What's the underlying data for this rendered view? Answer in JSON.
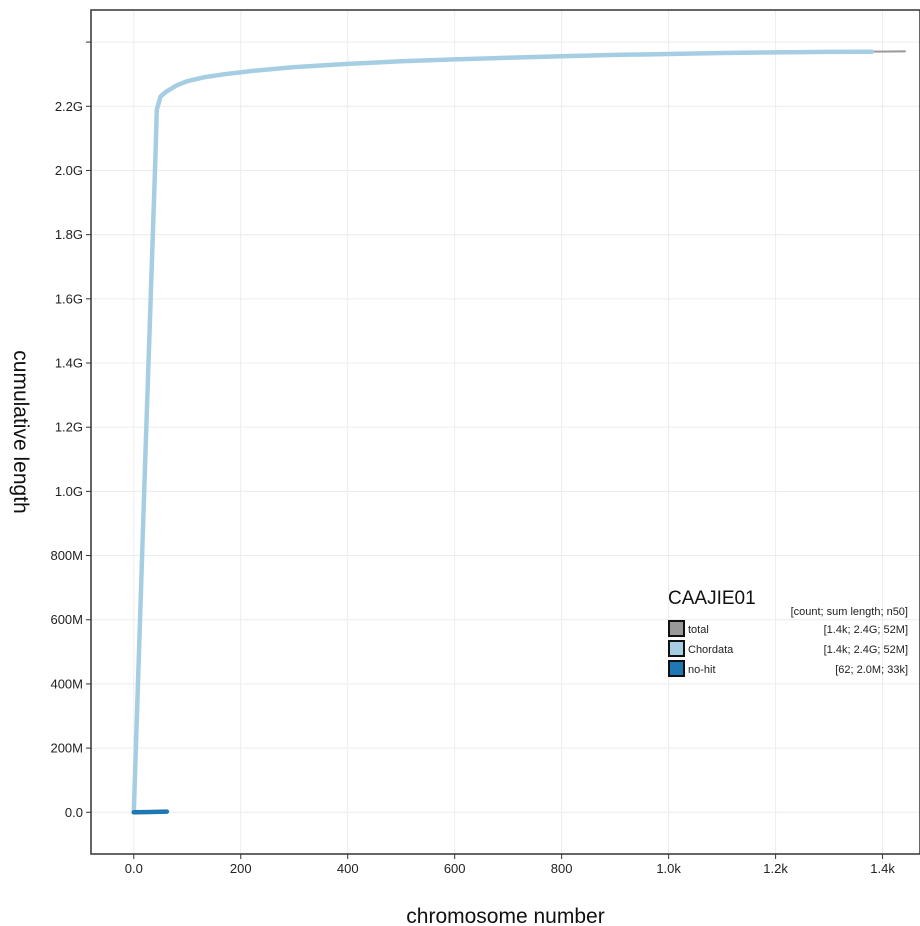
{
  "chart_data": {
    "type": "line",
    "xlabel": "chromosome number",
    "ylabel": "cumulative length",
    "xlim": [
      -80,
      1470
    ],
    "ylim": [
      -130000000,
      2500000000
    ],
    "grid": true,
    "x_ticks": [
      {
        "value": 0,
        "label": "0.0"
      },
      {
        "value": 200,
        "label": "200"
      },
      {
        "value": 400,
        "label": "400"
      },
      {
        "value": 600,
        "label": "600"
      },
      {
        "value": 800,
        "label": "800"
      },
      {
        "value": 1000,
        "label": "1.0k"
      },
      {
        "value": 1200,
        "label": "1.2k"
      },
      {
        "value": 1400,
        "label": "1.4k"
      }
    ],
    "y_ticks": [
      {
        "value": 0,
        "label": "0.0"
      },
      {
        "value": 200000000,
        "label": "200M"
      },
      {
        "value": 400000000,
        "label": "400M"
      },
      {
        "value": 600000000,
        "label": "600M"
      },
      {
        "value": 800000000,
        "label": "800M"
      },
      {
        "value": 1000000000,
        "label": "1.0G"
      },
      {
        "value": 1200000000,
        "label": "1.2G"
      },
      {
        "value": 1400000000,
        "label": "1.4G"
      },
      {
        "value": 1600000000,
        "label": "1.6G"
      },
      {
        "value": 1800000000,
        "label": "1.8G"
      },
      {
        "value": 2000000000,
        "label": "2.0G"
      },
      {
        "value": 2200000000,
        "label": "2.2G"
      },
      {
        "value": 2400000000,
        "label": ""
      }
    ],
    "series": [
      {
        "name": "total",
        "color": "#999999",
        "width": 2,
        "points": [
          [
            0,
            0
          ],
          [
            20,
            1030000000
          ],
          [
            40,
            2020000000
          ],
          [
            43,
            2190000000
          ],
          [
            50,
            2230000000
          ],
          [
            60,
            2245000000
          ],
          [
            80,
            2265000000
          ],
          [
            100,
            2278000000
          ],
          [
            130,
            2290000000
          ],
          [
            170,
            2300000000
          ],
          [
            220,
            2310000000
          ],
          [
            300,
            2322000000
          ],
          [
            400,
            2332000000
          ],
          [
            500,
            2340000000
          ],
          [
            600,
            2346000000
          ],
          [
            700,
            2351000000
          ],
          [
            800,
            2356000000
          ],
          [
            900,
            2360000000
          ],
          [
            1000,
            2363000000
          ],
          [
            1100,
            2366000000
          ],
          [
            1200,
            2368000000
          ],
          [
            1300,
            2369500000
          ],
          [
            1380,
            2370500000
          ],
          [
            1442,
            2371000000
          ]
        ]
      },
      {
        "name": "Chordata",
        "color": "#a6cee3",
        "width": 4.5,
        "points": [
          [
            0,
            0
          ],
          [
            20,
            1030000000
          ],
          [
            40,
            2020000000
          ],
          [
            43,
            2190000000
          ],
          [
            50,
            2230000000
          ],
          [
            60,
            2245000000
          ],
          [
            80,
            2265000000
          ],
          [
            100,
            2278000000
          ],
          [
            130,
            2290000000
          ],
          [
            170,
            2300000000
          ],
          [
            220,
            2310000000
          ],
          [
            300,
            2322000000
          ],
          [
            400,
            2332000000
          ],
          [
            500,
            2340000000
          ],
          [
            600,
            2346000000
          ],
          [
            700,
            2351000000
          ],
          [
            800,
            2356000000
          ],
          [
            900,
            2360000000
          ],
          [
            1000,
            2363000000
          ],
          [
            1100,
            2366000000
          ],
          [
            1200,
            2368000000
          ],
          [
            1300,
            2369500000
          ],
          [
            1380,
            2370000000
          ]
        ]
      },
      {
        "name": "no-hit",
        "color": "#1f78b4",
        "width": 4.5,
        "points": [
          [
            0,
            0
          ],
          [
            20,
            700000
          ],
          [
            40,
            1300000
          ],
          [
            62,
            2000000
          ]
        ]
      }
    ],
    "legend": {
      "title": "CAAJIE01",
      "header": "[count; sum length; n50]",
      "placement": "right",
      "entries": [
        {
          "label": "total",
          "color": "#999999",
          "stats": "[1.4k; 2.4G; 52M]"
        },
        {
          "label": "Chordata",
          "color": "#a6cee3",
          "stats": "[1.4k; 2.4G; 52M]"
        },
        {
          "label": "no-hit",
          "color": "#1f78b4",
          "stats": "[62; 2.0M; 33k]"
        }
      ]
    }
  }
}
